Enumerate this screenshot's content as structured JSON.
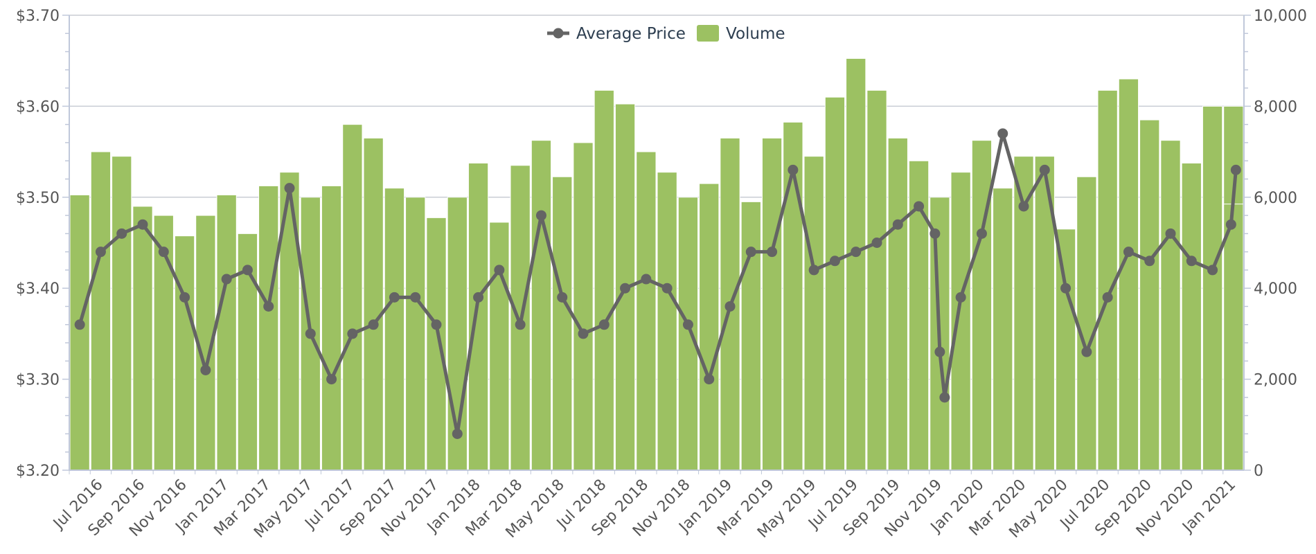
{
  "chart_data": {
    "type": "bar+line",
    "title": "",
    "legend": {
      "placement": "top-center",
      "items": [
        {
          "label": "Average Price",
          "type": "line-marker",
          "color": "#646464"
        },
        {
          "label": "Volume",
          "type": "bar",
          "color": "#9cc162"
        }
      ]
    },
    "y_left": {
      "min": 3.2,
      "max": 3.7,
      "ticks": [
        "$3.20",
        "$3.30",
        "$3.40",
        "$3.50",
        "$3.60",
        "$3.70"
      ],
      "tick_values": [
        3.2,
        3.3,
        3.4,
        3.5,
        3.6,
        3.7
      ]
    },
    "y_right": {
      "min": 0,
      "max": 10000,
      "ticks": [
        "0",
        "2,000",
        "4,000",
        "6,000",
        "8,000",
        "10,000"
      ],
      "tick_values": [
        0,
        2000,
        4000,
        6000,
        8000,
        10000
      ]
    },
    "x": {
      "months": [
        "2016-06",
        "2016-07",
        "2016-08",
        "2016-09",
        "2016-10",
        "2016-11",
        "2016-12",
        "2017-01",
        "2017-02",
        "2017-03",
        "2017-04",
        "2017-05",
        "2017-06",
        "2017-07",
        "2017-08",
        "2017-09",
        "2017-10",
        "2017-11",
        "2017-12",
        "2018-01",
        "2018-02",
        "2018-03",
        "2018-04",
        "2018-05",
        "2018-06",
        "2018-07",
        "2018-08",
        "2018-09",
        "2018-10",
        "2018-11",
        "2018-12",
        "2019-01",
        "2019-02",
        "2019-03",
        "2019-04",
        "2019-05",
        "2019-06",
        "2019-07",
        "2019-08",
        "2019-09",
        "2019-10",
        "2019-11",
        "2019-12",
        "2020-01",
        "2020-02",
        "2020-03",
        "2020-04",
        "2020-05",
        "2020-06",
        "2020-07",
        "2020-08",
        "2020-09",
        "2020-10",
        "2020-11",
        "2020-12",
        "2021-01"
      ],
      "tick_labels": [
        {
          "month": "2016-07",
          "label": "Jul 2016"
        },
        {
          "month": "2016-09",
          "label": "Sep 2016"
        },
        {
          "month": "2016-11",
          "label": "Nov 2016"
        },
        {
          "month": "2017-01",
          "label": "Jan 2017"
        },
        {
          "month": "2017-03",
          "label": "Mar 2017"
        },
        {
          "month": "2017-05",
          "label": "May 2017"
        },
        {
          "month": "2017-07",
          "label": "Jul 2017"
        },
        {
          "month": "2017-09",
          "label": "Sep 2017"
        },
        {
          "month": "2017-11",
          "label": "Nov 2017"
        },
        {
          "month": "2018-01",
          "label": "Jan 2018"
        },
        {
          "month": "2018-03",
          "label": "Mar 2018"
        },
        {
          "month": "2018-05",
          "label": "May 2018"
        },
        {
          "month": "2018-07",
          "label": "Jul 2018"
        },
        {
          "month": "2018-09",
          "label": "Sep 2018"
        },
        {
          "month": "2018-11",
          "label": "Nov 2018"
        },
        {
          "month": "2019-01",
          "label": "Jan 2019"
        },
        {
          "month": "2019-03",
          "label": "Mar 2019"
        },
        {
          "month": "2019-05",
          "label": "May 2019"
        },
        {
          "month": "2019-07",
          "label": "Jul 2019"
        },
        {
          "month": "2019-09",
          "label": "Sep 2019"
        },
        {
          "month": "2019-11",
          "label": "Nov 2019"
        },
        {
          "month": "2020-01",
          "label": "Jan 2020"
        },
        {
          "month": "2020-03",
          "label": "Mar 2020"
        },
        {
          "month": "2020-05",
          "label": "May 2020"
        },
        {
          "month": "2020-07",
          "label": "Jul 2020"
        },
        {
          "month": "2020-09",
          "label": "Sep 2020"
        },
        {
          "month": "2020-11",
          "label": "Nov 2020"
        },
        {
          "month": "2021-01",
          "label": "Jan 2021"
        }
      ]
    },
    "series": [
      {
        "name": "Volume",
        "type": "bar",
        "axis": "right",
        "color": "#9cc162",
        "points": [
          {
            "x": "2016-06",
            "y": 6050
          },
          {
            "x": "2016-07",
            "y": 7000
          },
          {
            "x": "2016-08",
            "y": 6900
          },
          {
            "x": "2016-09",
            "y": 5800
          },
          {
            "x": "2016-10",
            "y": 5600
          },
          {
            "x": "2016-11",
            "y": 5150
          },
          {
            "x": "2016-12",
            "y": 5600
          },
          {
            "x": "2017-01",
            "y": 6050
          },
          {
            "x": "2017-02",
            "y": 5200
          },
          {
            "x": "2017-03",
            "y": 6250
          },
          {
            "x": "2017-04",
            "y": 6550
          },
          {
            "x": "2017-05",
            "y": 6000
          },
          {
            "x": "2017-06",
            "y": 6250
          },
          {
            "x": "2017-07",
            "y": 7600
          },
          {
            "x": "2017-08",
            "y": 7300
          },
          {
            "x": "2017-09",
            "y": 6200
          },
          {
            "x": "2017-10",
            "y": 6000
          },
          {
            "x": "2017-11",
            "y": 5550
          },
          {
            "x": "2017-12",
            "y": 6000
          },
          {
            "x": "2018-01",
            "y": 6750
          },
          {
            "x": "2018-02",
            "y": 5450
          },
          {
            "x": "2018-03",
            "y": 6700
          },
          {
            "x": "2018-04",
            "y": 7250
          },
          {
            "x": "2018-05",
            "y": 6450
          },
          {
            "x": "2018-06",
            "y": 7200
          },
          {
            "x": "2018-07",
            "y": 8350
          },
          {
            "x": "2018-08",
            "y": 8050
          },
          {
            "x": "2018-09",
            "y": 7000
          },
          {
            "x": "2018-10",
            "y": 6550
          },
          {
            "x": "2018-11",
            "y": 6000
          },
          {
            "x": "2018-12",
            "y": 6300
          },
          {
            "x": "2019-01",
            "y": 7300
          },
          {
            "x": "2019-02",
            "y": 5900
          },
          {
            "x": "2019-03",
            "y": 7300
          },
          {
            "x": "2019-04",
            "y": 7650
          },
          {
            "x": "2019-05",
            "y": 6900
          },
          {
            "x": "2019-06",
            "y": 8200
          },
          {
            "x": "2019-07",
            "y": 9050
          },
          {
            "x": "2019-08",
            "y": 8350
          },
          {
            "x": "2019-09",
            "y": 7300
          },
          {
            "x": "2019-10",
            "y": 6800
          },
          {
            "x": "2019-11",
            "y": 6000
          },
          {
            "x": "2019-12",
            "y": 6550
          },
          {
            "x": "2020-01",
            "y": 7250
          },
          {
            "x": "2020-02",
            "y": 6200
          },
          {
            "x": "2020-03",
            "y": 6900
          },
          {
            "x": "2020-04",
            "y": 6900
          },
          {
            "x": "2020-05",
            "y": 5300
          },
          {
            "x": "2020-06",
            "y": 6450
          },
          {
            "x": "2020-07",
            "y": 8350
          },
          {
            "x": "2020-08",
            "y": 8600
          },
          {
            "x": "2020-09",
            "y": 7700
          },
          {
            "x": "2020-10",
            "y": 7250
          },
          {
            "x": "2020-11",
            "y": 6750
          },
          {
            "x": "2020-12",
            "y": 8000
          },
          {
            "x": "2021-01",
            "y": 8000
          },
          {
            "x": "2021-01",
            "y": 5850
          }
        ]
      },
      {
        "name": "Average Price",
        "type": "line",
        "axis": "left",
        "color": "#646464",
        "points": [
          {
            "x": "2016-06",
            "y": 3.36
          },
          {
            "x": "2016-07",
            "y": 3.44
          },
          {
            "x": "2016-08",
            "y": 3.46
          },
          {
            "x": "2016-09",
            "y": 3.47
          },
          {
            "x": "2016-10",
            "y": 3.44
          },
          {
            "x": "2016-11",
            "y": 3.39
          },
          {
            "x": "2016-12",
            "y": 3.31
          },
          {
            "x": "2017-01",
            "y": 3.41
          },
          {
            "x": "2017-02",
            "y": 3.42
          },
          {
            "x": "2017-03",
            "y": 3.38
          },
          {
            "x": "2017-04",
            "y": 3.51
          },
          {
            "x": "2017-05",
            "y": 3.35
          },
          {
            "x": "2017-06",
            "y": 3.3
          },
          {
            "x": "2017-07",
            "y": 3.35
          },
          {
            "x": "2017-08",
            "y": 3.36
          },
          {
            "x": "2017-09",
            "y": 3.39
          },
          {
            "x": "2017-10",
            "y": 3.39
          },
          {
            "x": "2017-11",
            "y": 3.36
          },
          {
            "x": "2017-12",
            "y": 3.24
          },
          {
            "x": "2018-01",
            "y": 3.39
          },
          {
            "x": "2018-02",
            "y": 3.42
          },
          {
            "x": "2018-03",
            "y": 3.36
          },
          {
            "x": "2018-04",
            "y": 3.48
          },
          {
            "x": "2018-05",
            "y": 3.39
          },
          {
            "x": "2018-06",
            "y": 3.35
          },
          {
            "x": "2018-07",
            "y": 3.36
          },
          {
            "x": "2018-08",
            "y": 3.4
          },
          {
            "x": "2018-09",
            "y": 3.41
          },
          {
            "x": "2018-10",
            "y": 3.4
          },
          {
            "x": "2018-11",
            "y": 3.36
          },
          {
            "x": "2018-12",
            "y": 3.3
          },
          {
            "x": "2019-01",
            "y": 3.38
          },
          {
            "x": "2019-02",
            "y": 3.44
          },
          {
            "x": "2019-03",
            "y": 3.44
          },
          {
            "x": "2019-04",
            "y": 3.53
          },
          {
            "x": "2019-05",
            "y": 3.42
          },
          {
            "x": "2019-06",
            "y": 3.43
          },
          {
            "x": "2019-07",
            "y": 3.44
          },
          {
            "x": "2019-08",
            "y": 3.45
          },
          {
            "x": "2019-09",
            "y": 3.47
          },
          {
            "x": "2019-10",
            "y": 3.49
          },
          {
            "x": "2019-11",
            "y": 3.46
          },
          {
            "x": "2019-11",
            "y": 3.33
          },
          {
            "x": "2019-11",
            "y": 3.28
          },
          {
            "x": "2019-12",
            "y": 3.39
          },
          {
            "x": "2020-01",
            "y": 3.46
          },
          {
            "x": "2020-02",
            "y": 3.57
          },
          {
            "x": "2020-03",
            "y": 3.49
          },
          {
            "x": "2020-04",
            "y": 3.53
          },
          {
            "x": "2020-05",
            "y": 3.4
          },
          {
            "x": "2020-06",
            "y": 3.33
          },
          {
            "x": "2020-07",
            "y": 3.39
          },
          {
            "x": "2020-08",
            "y": 3.44
          },
          {
            "x": "2020-09",
            "y": 3.43
          },
          {
            "x": "2020-10",
            "y": 3.46
          },
          {
            "x": "2020-11",
            "y": 3.43
          },
          {
            "x": "2020-12",
            "y": 3.42
          },
          {
            "x": "2021-01",
            "y": 3.47
          },
          {
            "x": "2021-01",
            "y": 3.53
          }
        ]
      }
    ],
    "colors": {
      "volume": "#9cc162",
      "price": "#646464",
      "gridline": "#c8ccd4",
      "axis": "#c0c8da",
      "tick_text": "#555555",
      "legend_text": "#2d3e50"
    },
    "grid": true
  }
}
